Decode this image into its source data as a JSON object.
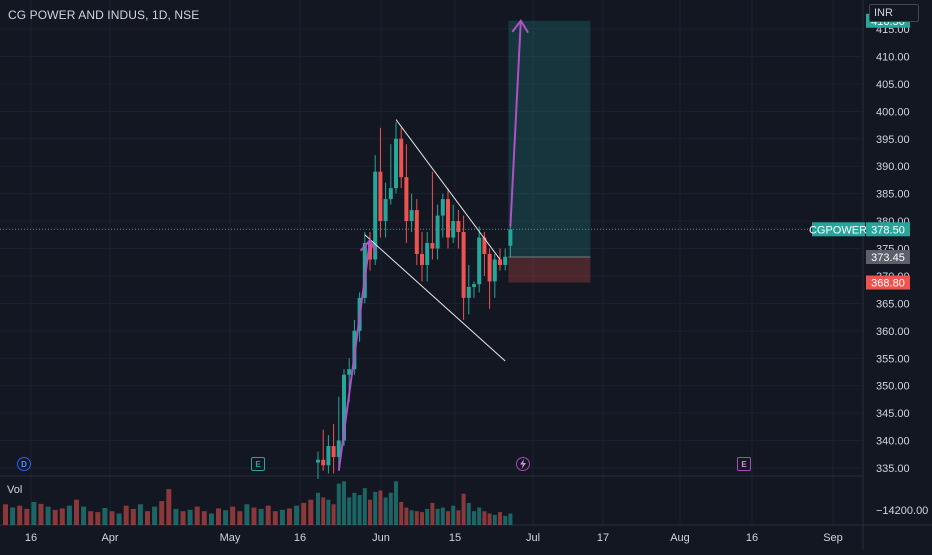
{
  "header": {
    "symbol_title": "CG POWER AND INDUS, 1D, NSE",
    "currency": "INR"
  },
  "volume": {
    "label": "Vol",
    "axis_label": "−14200.00"
  },
  "events": {
    "dividend": "D",
    "earnings_1": "E",
    "split": "",
    "earnings_2": "E"
  },
  "colors": {
    "up": "#26a69a",
    "down": "#ef5350",
    "background": "#131722",
    "annotation": "#b150c8",
    "trendline": "#e8e8e8"
  },
  "icons": {
    "split": "lightning-icon"
  },
  "chart_data": {
    "type": "candlestick",
    "symbol": "CGPOWER",
    "interval": "1D",
    "exchange": "NSE",
    "ylim": [
      332,
      418
    ],
    "y_ticks": [
      335,
      340,
      345,
      350,
      355,
      360,
      365,
      370,
      375,
      380,
      385,
      390,
      395,
      400,
      405,
      410,
      415
    ],
    "x_ticks": [
      "16",
      "Apr",
      "May",
      "16",
      "Jun",
      "15",
      "Jul",
      "17",
      "Aug",
      "16",
      "Sep"
    ],
    "price_labels": {
      "target": "416.50",
      "last": "378.50",
      "last_symbol": "CGPOWER",
      "entry": "373.45",
      "stop": "368.80"
    },
    "candles": [
      {
        "d": "2023-05-10",
        "o": 336.0,
        "h": 338.0,
        "l": 333.0,
        "c": 336.5
      },
      {
        "d": "2023-05-11",
        "o": 336.5,
        "h": 342.0,
        "l": 334.5,
        "c": 335.5
      },
      {
        "d": "2023-05-12",
        "o": 335.5,
        "h": 341.0,
        "l": 334.0,
        "c": 339.0
      },
      {
        "d": "2023-05-15",
        "o": 339.0,
        "h": 343.0,
        "l": 334.0,
        "c": 337.0
      },
      {
        "d": "2023-05-16",
        "o": 337.0,
        "h": 348.0,
        "l": 335.0,
        "c": 340.0
      },
      {
        "d": "2023-05-17",
        "o": 340.0,
        "h": 353.0,
        "l": 339.0,
        "c": 352.0
      },
      {
        "d": "2023-05-18",
        "o": 352.0,
        "h": 355.0,
        "l": 347.0,
        "c": 353.0
      },
      {
        "d": "2023-05-19",
        "o": 353.0,
        "h": 362.0,
        "l": 352.0,
        "c": 360.0
      },
      {
        "d": "2023-05-22",
        "o": 360.0,
        "h": 367.0,
        "l": 358.0,
        "c": 366.0
      },
      {
        "d": "2023-05-23",
        "o": 366.0,
        "h": 378.0,
        "l": 365.0,
        "c": 376.0
      },
      {
        "d": "2023-05-24",
        "o": 376.0,
        "h": 378.0,
        "l": 371.0,
        "c": 373.0
      },
      {
        "d": "2023-05-25",
        "o": 373.0,
        "h": 392.0,
        "l": 372.0,
        "c": 389.0
      },
      {
        "d": "2023-05-26",
        "o": 389.0,
        "h": 397.0,
        "l": 377.0,
        "c": 380.0
      },
      {
        "d": "2023-05-29",
        "o": 380.0,
        "h": 387.0,
        "l": 377.0,
        "c": 384.0
      },
      {
        "d": "2023-05-30",
        "o": 384.0,
        "h": 394.0,
        "l": 383.0,
        "c": 386.0
      },
      {
        "d": "2023-05-31",
        "o": 386.0,
        "h": 398.0,
        "l": 385.0,
        "c": 395.0
      },
      {
        "d": "2023-06-01",
        "o": 395.0,
        "h": 397.0,
        "l": 386.0,
        "c": 388.0
      },
      {
        "d": "2023-06-02",
        "o": 388.0,
        "h": 394.0,
        "l": 376.0,
        "c": 380.0
      },
      {
        "d": "2023-06-05",
        "o": 380.0,
        "h": 385.0,
        "l": 378.0,
        "c": 382.0
      },
      {
        "d": "2023-06-06",
        "o": 382.0,
        "h": 384.0,
        "l": 372.0,
        "c": 374.0
      },
      {
        "d": "2023-06-07",
        "o": 374.0,
        "h": 378.0,
        "l": 369.0,
        "c": 372.0
      },
      {
        "d": "2023-06-08",
        "o": 372.0,
        "h": 378.0,
        "l": 369.0,
        "c": 376.0
      },
      {
        "d": "2023-06-09",
        "o": 376.0,
        "h": 389.0,
        "l": 373.0,
        "c": 375.0
      },
      {
        "d": "2023-06-12",
        "o": 375.0,
        "h": 383.0,
        "l": 373.0,
        "c": 381.0
      },
      {
        "d": "2023-06-13",
        "o": 381.0,
        "h": 385.0,
        "l": 377.0,
        "c": 384.0
      },
      {
        "d": "2023-06-14",
        "o": 384.0,
        "h": 386.0,
        "l": 375.0,
        "c": 377.0
      },
      {
        "d": "2023-06-15",
        "o": 377.0,
        "h": 383.0,
        "l": 376.0,
        "c": 380.0
      },
      {
        "d": "2023-06-16",
        "o": 380.0,
        "h": 382.0,
        "l": 375.0,
        "c": 378.0
      },
      {
        "d": "2023-06-19",
        "o": 378.0,
        "h": 381.0,
        "l": 362.0,
        "c": 366.0
      },
      {
        "d": "2023-06-20",
        "o": 366.0,
        "h": 372.0,
        "l": 363.0,
        "c": 368.0
      },
      {
        "d": "2023-06-21",
        "o": 368.0,
        "h": 369.0,
        "l": 366.0,
        "c": 368.5
      },
      {
        "d": "2023-06-22",
        "o": 368.5,
        "h": 379.0,
        "l": 367.0,
        "c": 377.0
      },
      {
        "d": "2023-06-23",
        "o": 377.0,
        "h": 378.0,
        "l": 370.0,
        "c": 374.0
      },
      {
        "d": "2023-06-26",
        "o": 374.0,
        "h": 375.0,
        "l": 364.0,
        "c": 369.0
      },
      {
        "d": "2023-06-27",
        "o": 369.0,
        "h": 374.0,
        "l": 366.0,
        "c": 373.0
      },
      {
        "d": "2023-06-28",
        "o": 373.0,
        "h": 375.0,
        "l": 371.0,
        "c": 372.0
      },
      {
        "d": "2023-06-30",
        "o": 372.0,
        "h": 375.0,
        "l": 371.0,
        "c": 373.5
      },
      {
        "d": "2023-07-03",
        "o": 375.5,
        "h": 379.0,
        "l": 373.5,
        "c": 378.5
      }
    ],
    "volume_early": [
      0.45,
      0.38,
      0.42,
      0.35,
      0.5,
      0.46,
      0.4,
      0.33,
      0.36,
      0.42,
      0.55,
      0.4,
      0.3,
      0.28,
      0.37,
      0.3,
      0.25,
      0.42,
      0.35,
      0.45,
      0.3,
      0.4,
      0.52,
      0.78,
      0.35,
      0.3,
      0.33,
      0.4,
      0.3,
      0.25,
      0.36,
      0.32,
      0.4,
      0.3,
      0.45,
      0.38,
      0.35,
      0.42,
      0.3,
      0.33,
      0.36,
      0.42,
      0.48,
      0.55
    ],
    "volume": [
      0.7,
      0.6,
      0.55,
      0.45,
      0.9,
      0.95,
      0.6,
      0.7,
      0.65,
      0.8,
      0.55,
      0.72,
      0.75,
      0.6,
      0.7,
      0.95,
      0.5,
      0.38,
      0.32,
      0.3,
      0.28,
      0.35,
      0.48,
      0.35,
      0.38,
      0.3,
      0.42,
      0.32,
      0.68,
      0.48,
      0.3,
      0.38,
      0.3,
      0.25,
      0.22,
      0.28,
      0.2,
      0.25
    ],
    "trendlines": [
      {
        "from": {
          "d": "2023-05-31",
          "p": 398.5
        },
        "to": {
          "d": "2023-06-28",
          "p": 373.0
        }
      },
      {
        "from": {
          "d": "2023-05-23",
          "p": 377.5
        },
        "to": {
          "d": "2023-06-30",
          "p": 354.5
        }
      }
    ],
    "arrows": [
      {
        "from": {
          "d": "2023-05-16",
          "p": 334.5
        },
        "to": {
          "d": "2023-05-24",
          "p": 376.5
        }
      },
      {
        "from": {
          "d": "2023-07-03",
          "p": 379.0
        },
        "to": {
          "d": "2023-07-05",
          "p": 416.5
        }
      }
    ],
    "position": {
      "type": "long",
      "entry": 373.45,
      "target": 416.5,
      "stop": 368.8,
      "from_date": "2023-07-03",
      "to_date": "2023-07-24"
    }
  }
}
